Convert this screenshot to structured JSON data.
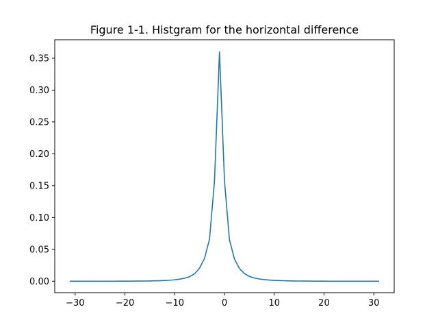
{
  "chart_data": {
    "type": "line",
    "title": "Figure 1-1. Histgram for the horizontal difference",
    "xlabel": "",
    "ylabel": "",
    "xlim": [
      -34.1,
      34.1
    ],
    "ylim": [
      -0.018,
      0.379
    ],
    "grid": false,
    "line_color": "#1f77b4",
    "x_ticks": [
      -30,
      -20,
      -10,
      0,
      10,
      20,
      30
    ],
    "x_tick_labels": [
      "−30",
      "−20",
      "−10",
      "0",
      "10",
      "20",
      "30"
    ],
    "y_ticks": [
      0.0,
      0.05,
      0.1,
      0.15,
      0.2,
      0.25,
      0.3,
      0.35
    ],
    "y_tick_labels": [
      "0.00",
      "0.05",
      "0.10",
      "0.15",
      "0.20",
      "0.25",
      "0.30",
      "0.35"
    ],
    "series": [
      {
        "x": [
          -31,
          -30,
          -29,
          -28,
          -27,
          -26,
          -25,
          -24,
          -23,
          -22,
          -21,
          -20,
          -19,
          -18,
          -17,
          -16,
          -15,
          -14,
          -13,
          -12,
          -11,
          -10,
          -9,
          -8,
          -7,
          -6,
          -5,
          -4,
          -3,
          -2,
          -1,
          0,
          1,
          2,
          3,
          4,
          5,
          6,
          7,
          8,
          9,
          10,
          11,
          12,
          13,
          14,
          15,
          16,
          17,
          18,
          19,
          20,
          21,
          22,
          23,
          24,
          25,
          26,
          27,
          28,
          29,
          30,
          31
        ],
        "y": [
          0.0,
          0.0,
          0.0,
          0.0,
          0.0,
          0.0,
          0.0,
          0.0,
          0.0,
          0.0,
          0.0001,
          0.0001,
          0.0001,
          0.0002,
          0.0002,
          0.0003,
          0.0004,
          0.0006,
          0.0008,
          0.0011,
          0.0015,
          0.0022,
          0.0032,
          0.0047,
          0.0072,
          0.0116,
          0.0206,
          0.036,
          0.066,
          0.158,
          0.36,
          0.158,
          0.065,
          0.035,
          0.02,
          0.012,
          0.0075,
          0.005,
          0.0035,
          0.0025,
          0.0018,
          0.0013,
          0.001,
          0.0007,
          0.0005,
          0.0004,
          0.0003,
          0.0002,
          0.0002,
          0.0001,
          0.0001,
          0.0001,
          0.0,
          0.0,
          0.0,
          0.0,
          0.0,
          0.0,
          0.0,
          0.0,
          0.0,
          0.0,
          0.0
        ]
      }
    ]
  }
}
